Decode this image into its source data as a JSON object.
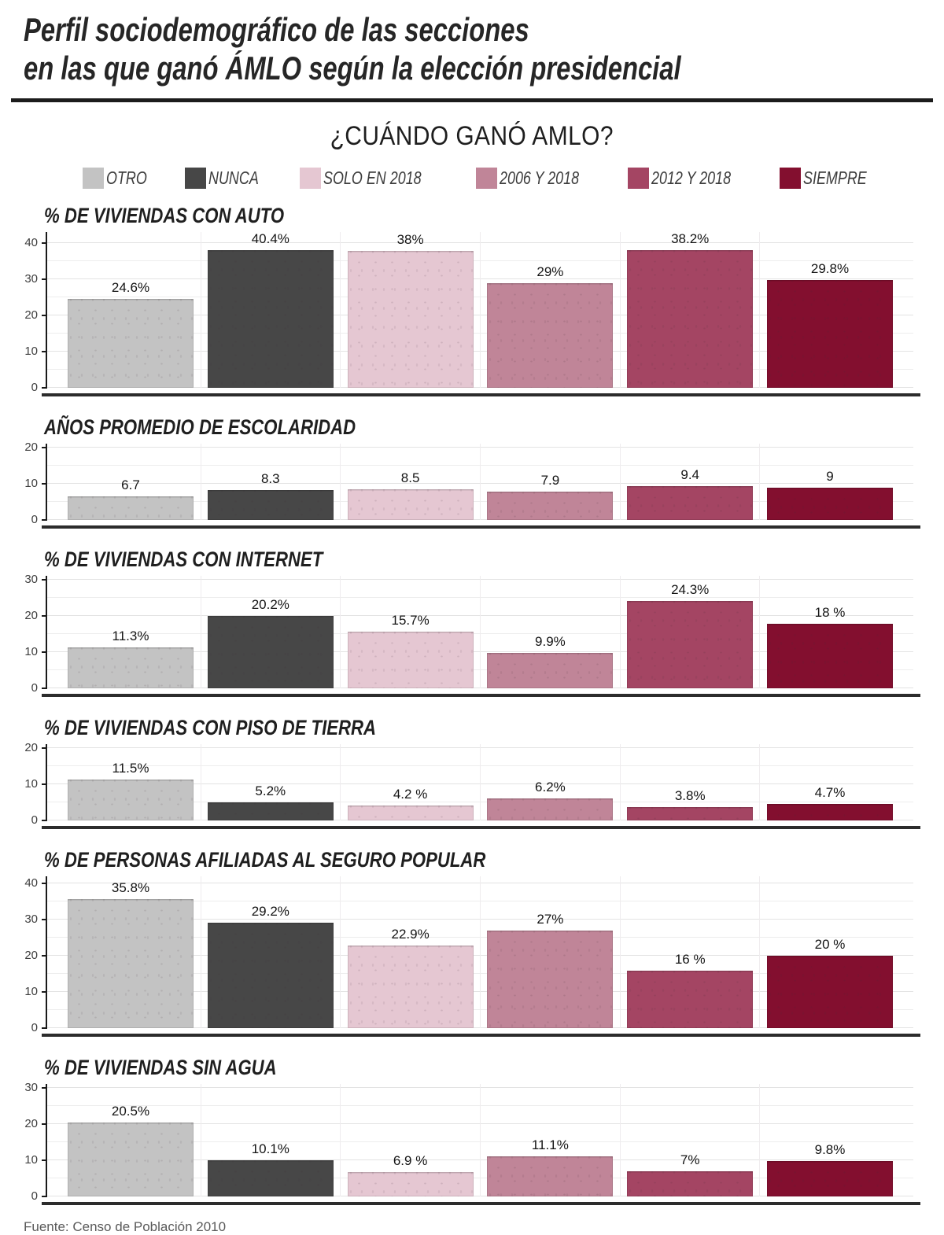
{
  "header": {
    "title_line1": "Perfil sociodemográfico de las secciones",
    "title_line2": "en las que ganó ÁMLO según la elección presidencial",
    "subtitle": "¿CUÁNDO GANÓ AMLO?"
  },
  "legend": [
    {
      "label": "OTRO",
      "color": "#c3c3c3"
    },
    {
      "label": "NUNCA",
      "color": "#474747"
    },
    {
      "label": "SOLO EN 2018",
      "color": "#e5c7d2"
    },
    {
      "label": "2006 Y 2018",
      "color": "#c08598"
    },
    {
      "label": "2012 Y 2018",
      "color": "#a44563"
    },
    {
      "label": "SIEMPRE",
      "color": "#830f2f"
    }
  ],
  "footer": {
    "source": "Fuente: Censo de Población 2010"
  },
  "chart_data": [
    {
      "type": "bar",
      "title": "% DE VIVIENDAS CON AUTO",
      "categories": [
        "OTRO",
        "NUNCA",
        "SOLO EN 2018",
        "2006 Y 2018",
        "2012 Y 2018",
        "SIEMPRE"
      ],
      "values": [
        24.6,
        40.4,
        38,
        29,
        38.2,
        29.8
      ],
      "labels": [
        "24.6%",
        "40.4%",
        "38%",
        "29%",
        "38.2%",
        "29.8%"
      ],
      "yticks": [
        0,
        10,
        20,
        30,
        40
      ],
      "ylim": [
        0,
        43
      ],
      "grid": "on",
      "legend_position": "top"
    },
    {
      "type": "bar",
      "title": "AÑOS PROMEDIO DE ESCOLARIDAD",
      "categories": [
        "OTRO",
        "NUNCA",
        "SOLO EN 2018",
        "2006 Y 2018",
        "2012 Y 2018",
        "SIEMPRE"
      ],
      "values": [
        6.7,
        8.3,
        8.5,
        7.9,
        9.4,
        9
      ],
      "labels": [
        "6.7",
        "8.3",
        "8.5",
        "7.9",
        "9.4",
        "9"
      ],
      "yticks": [
        0,
        10,
        20
      ],
      "ylim": [
        0,
        21
      ],
      "grid": "on",
      "legend_position": "top"
    },
    {
      "type": "bar",
      "title": "% DE VIVIENDAS CON INTERNET",
      "categories": [
        "OTRO",
        "NUNCA",
        "SOLO EN 2018",
        "2006 Y 2018",
        "2012 Y 2018",
        "SIEMPRE"
      ],
      "values": [
        11.3,
        20.2,
        15.7,
        9.9,
        24.3,
        18
      ],
      "labels": [
        "11.3%",
        "20.2%",
        "15.7%",
        "9.9%",
        "24.3%",
        "18 %"
      ],
      "yticks": [
        0,
        10,
        20,
        30
      ],
      "ylim": [
        0,
        31
      ],
      "grid": "on",
      "legend_position": "top"
    },
    {
      "type": "bar",
      "title": "% DE VIVIENDAS CON PISO DE TIERRA",
      "categories": [
        "OTRO",
        "NUNCA",
        "SOLO EN 2018",
        "2006 Y 2018",
        "2012 Y 2018",
        "SIEMPRE"
      ],
      "values": [
        11.5,
        5.2,
        4.2,
        6.2,
        3.8,
        4.7
      ],
      "labels": [
        "11.5%",
        "5.2%",
        "4.2 %",
        "6.2%",
        "3.8%",
        "4.7%"
      ],
      "yticks": [
        0,
        10,
        20
      ],
      "ylim": [
        0,
        21
      ],
      "grid": "on",
      "legend_position": "top"
    },
    {
      "type": "bar",
      "title": "% DE PERSONAS AFILIADAS AL SEGURO POPULAR",
      "categories": [
        "OTRO",
        "NUNCA",
        "SOLO EN 2018",
        "2006 Y 2018",
        "2012 Y 2018",
        "SIEMPRE"
      ],
      "values": [
        35.8,
        29.2,
        22.9,
        27,
        16,
        20
      ],
      "labels": [
        "35.8%",
        "29.2%",
        "22.9%",
        "27%",
        "16 %",
        "20 %"
      ],
      "yticks": [
        0,
        10,
        20,
        30,
        40
      ],
      "ylim": [
        0,
        42
      ],
      "grid": "on",
      "legend_position": "top"
    },
    {
      "type": "bar",
      "title": "% DE VIVIENDAS SIN AGUA",
      "categories": [
        "OTRO",
        "NUNCA",
        "SOLO EN 2018",
        "2006 Y 2018",
        "2012 Y 2018",
        "SIEMPRE"
      ],
      "values": [
        20.5,
        10.1,
        6.9,
        11.1,
        7,
        9.8
      ],
      "labels": [
        "20.5%",
        "10.1%",
        "6.9 %",
        "11.1%",
        "7%",
        "9.8%"
      ],
      "yticks": [
        0,
        10,
        20,
        30
      ],
      "ylim": [
        0,
        31
      ],
      "grid": "on",
      "legend_position": "top"
    }
  ]
}
